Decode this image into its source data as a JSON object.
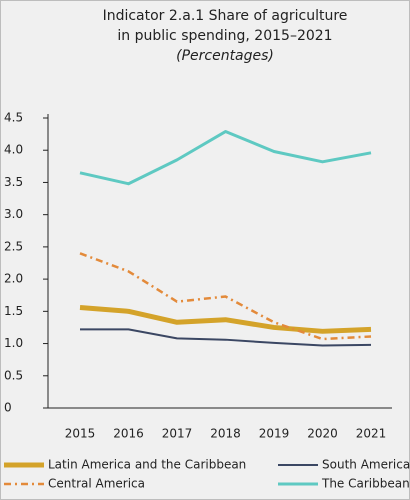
{
  "chart_data": {
    "type": "line",
    "title": [
      "Indicator 2.a.1 Share of agriculture",
      "in public spending, 2015–2021"
    ],
    "subtitle": "(Percentages)",
    "categories": [
      "2015",
      "2016",
      "2017",
      "2018",
      "2019",
      "2020",
      "2021"
    ],
    "series": [
      {
        "name": "Latin America and the Caribbean",
        "color": "#d4a32a",
        "linewidth": 5,
        "dash": "solid",
        "values": [
          1.56,
          1.5,
          1.33,
          1.37,
          1.25,
          1.19,
          1.22
        ]
      },
      {
        "name": "South America",
        "color": "#3b4763",
        "linewidth": 2,
        "dash": "solid",
        "values": [
          1.22,
          1.22,
          1.08,
          1.06,
          1.01,
          0.97,
          0.98
        ]
      },
      {
        "name": "Central America",
        "color": "#e38a3a",
        "linewidth": 2.5,
        "dash": "dash-dot",
        "values": [
          2.4,
          2.12,
          1.65,
          1.73,
          1.33,
          1.07,
          1.11
        ]
      },
      {
        "name": "The Caribbean",
        "color": "#5ec9c2",
        "linewidth": 3,
        "dash": "solid",
        "values": [
          3.65,
          3.48,
          3.85,
          4.29,
          3.98,
          3.82,
          3.96
        ]
      }
    ],
    "ylim": [
      0,
      4.5
    ],
    "yticks": [
      0,
      0.5,
      {
        "value": 1,
        "label": "1.0"
      },
      1.5,
      {
        "value": 2,
        "label": "2.0"
      },
      2.5,
      {
        "value": 3,
        "label": "3.0"
      },
      3.5,
      {
        "value": 4,
        "label": "4.0"
      },
      4.5
    ],
    "grid": false
  }
}
